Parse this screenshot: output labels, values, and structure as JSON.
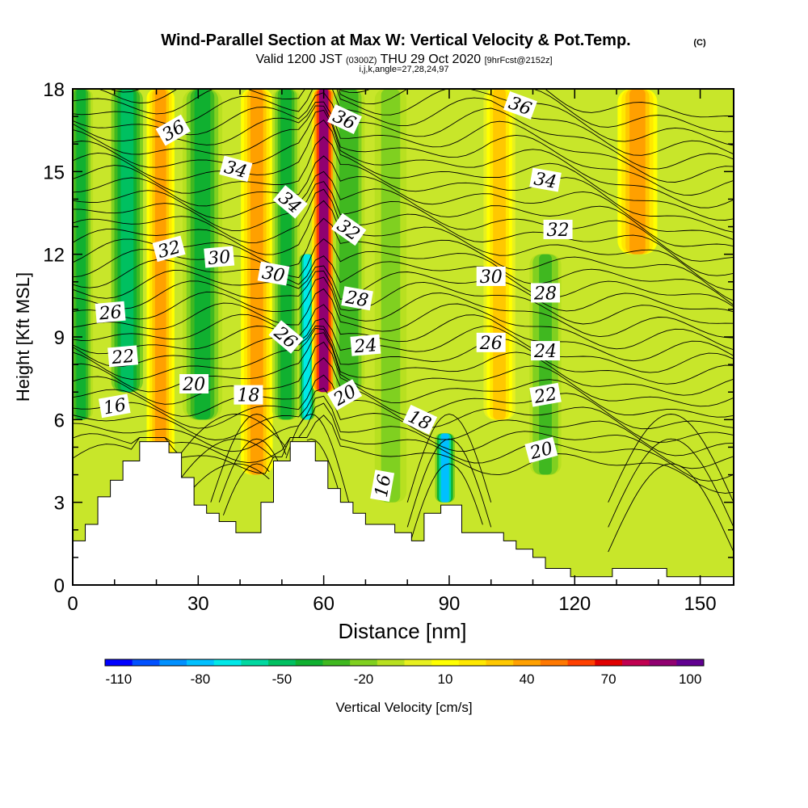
{
  "title": {
    "main": "Wind-Parallel Section at Max W: Vertical Velocity & Pot.Temp.",
    "copyright": "(C)",
    "valid_prefix": "Valid 1200 JST",
    "valid_utc": "(0300Z)",
    "valid_date": "THU 29 Oct 2020",
    "forecast": "[9hrFcst@2152z]",
    "indices": "i,j,k,angle=27,28,24,97"
  },
  "chart_data": {
    "type": "heatmap",
    "xlabel": "Distance [nm]",
    "ylabel": "Height [Kft MSL]",
    "xlim": [
      0,
      158
    ],
    "ylim": [
      0,
      18
    ],
    "x_ticks": [
      0,
      30,
      60,
      90,
      120,
      150
    ],
    "y_ticks": [
      0,
      3,
      6,
      9,
      12,
      15,
      18
    ],
    "terrain": [
      [
        0,
        1.6
      ],
      [
        3,
        1.6
      ],
      [
        3,
        2.2
      ],
      [
        6,
        2.2
      ],
      [
        6,
        3.2
      ],
      [
        9,
        3.2
      ],
      [
        9,
        3.8
      ],
      [
        12,
        3.8
      ],
      [
        12,
        4.5
      ],
      [
        16,
        4.5
      ],
      [
        16,
        5.2
      ],
      [
        23,
        5.2
      ],
      [
        23,
        4.8
      ],
      [
        26,
        4.8
      ],
      [
        26,
        3.9
      ],
      [
        29,
        3.9
      ],
      [
        29,
        2.9
      ],
      [
        32,
        2.9
      ],
      [
        32,
        2.6
      ],
      [
        35,
        2.6
      ],
      [
        35,
        2.3
      ],
      [
        39,
        2.3
      ],
      [
        39,
        1.9
      ],
      [
        45,
        1.9
      ],
      [
        45,
        3.0
      ],
      [
        48,
        3.0
      ],
      [
        48,
        4.5
      ],
      [
        52,
        4.5
      ],
      [
        52,
        5.2
      ],
      [
        58,
        5.2
      ],
      [
        58,
        4.5
      ],
      [
        61,
        4.5
      ],
      [
        61,
        3.5
      ],
      [
        64,
        3.5
      ],
      [
        64,
        3.0
      ],
      [
        67,
        3.0
      ],
      [
        67,
        2.6
      ],
      [
        70,
        2.6
      ],
      [
        70,
        2.2
      ],
      [
        77,
        2.2
      ],
      [
        77,
        1.9
      ],
      [
        81,
        1.9
      ],
      [
        81,
        1.6
      ],
      [
        84,
        1.6
      ],
      [
        84,
        2.6
      ],
      [
        88,
        2.6
      ],
      [
        88,
        2.9
      ],
      [
        93,
        2.9
      ],
      [
        93,
        1.9
      ],
      [
        103,
        1.9
      ],
      [
        103,
        1.6
      ],
      [
        106,
        1.6
      ],
      [
        106,
        1.3
      ],
      [
        110,
        1.3
      ],
      [
        110,
        1.0
      ],
      [
        113,
        1.0
      ],
      [
        113,
        0.6
      ],
      [
        119,
        0.6
      ],
      [
        119,
        0.3
      ],
      [
        129,
        0.3
      ],
      [
        129,
        0.6
      ],
      [
        142,
        0.6
      ],
      [
        142,
        0.3
      ],
      [
        158,
        0.3
      ]
    ],
    "vv_columns": [
      {
        "x": 2,
        "w": 3,
        "z0": 6,
        "z1": 18,
        "value": -40
      },
      {
        "x": 13,
        "w": 4,
        "z0": 7,
        "z1": 18,
        "value": -45
      },
      {
        "x": 21,
        "w": 3.5,
        "z0": 4.5,
        "z1": 18,
        "value": 45
      },
      {
        "x": 31,
        "w": 5,
        "z0": 6,
        "z1": 18,
        "value": -40
      },
      {
        "x": 44,
        "w": 4,
        "z0": 4,
        "z1": 18,
        "value": 40
      },
      {
        "x": 51,
        "w": 3.5,
        "z0": 6,
        "z1": 18,
        "value": -40
      },
      {
        "x": 56,
        "w": 2,
        "z0": 6,
        "z1": 12,
        "value": -70
      },
      {
        "x": 60,
        "w": 3,
        "z0": 7,
        "z1": 18,
        "value": 90
      },
      {
        "x": 66,
        "w": 4,
        "z0": 7,
        "z1": 18,
        "value": -30
      },
      {
        "x": 76,
        "w": 4,
        "z0": 3,
        "z1": 18,
        "value": -20
      },
      {
        "x": 89,
        "w": 2.5,
        "z0": 3,
        "z1": 5.5,
        "value": -80
      },
      {
        "x": 102,
        "w": 4,
        "z0": 6,
        "z1": 18,
        "value": 30
      },
      {
        "x": 113,
        "w": 4,
        "z0": 4,
        "z1": 12,
        "value": -25
      },
      {
        "x": 135,
        "w": 5,
        "z0": 12,
        "z1": 18,
        "value": 40
      }
    ],
    "theta_labels": [
      {
        "text": "36",
        "x": 24,
        "z": 16.5,
        "angle": -30
      },
      {
        "text": "36",
        "x": 65,
        "z": 16.9,
        "angle": 25
      },
      {
        "text": "36",
        "x": 107,
        "z": 17.4,
        "angle": 20
      },
      {
        "text": "34",
        "x": 39,
        "z": 15.1,
        "angle": 15
      },
      {
        "text": "34",
        "x": 52,
        "z": 13.9,
        "angle": 40
      },
      {
        "text": "34",
        "x": 113,
        "z": 14.7,
        "angle": 10
      },
      {
        "text": "32",
        "x": 23,
        "z": 12.2,
        "angle": -15
      },
      {
        "text": "32",
        "x": 66,
        "z": 12.9,
        "angle": 35
      },
      {
        "text": "32",
        "x": 116,
        "z": 12.9,
        "angle": 0
      },
      {
        "text": "30",
        "x": 35,
        "z": 11.9,
        "angle": -5
      },
      {
        "text": "30",
        "x": 48,
        "z": 11.3,
        "angle": 10
      },
      {
        "text": "30",
        "x": 100,
        "z": 11.2,
        "angle": 0
      },
      {
        "text": "28",
        "x": 68,
        "z": 10.4,
        "angle": 10
      },
      {
        "text": "28",
        "x": 113,
        "z": 10.6,
        "angle": 0
      },
      {
        "text": "26",
        "x": 9,
        "z": 9.9,
        "angle": -5
      },
      {
        "text": "26",
        "x": 51,
        "z": 9.0,
        "angle": 40
      },
      {
        "text": "26",
        "x": 100,
        "z": 8.8,
        "angle": 0
      },
      {
        "text": "24",
        "x": 70,
        "z": 8.7,
        "angle": -5
      },
      {
        "text": "24",
        "x": 113,
        "z": 8.5,
        "angle": 0
      },
      {
        "text": "22",
        "x": 12,
        "z": 8.3,
        "angle": -5
      },
      {
        "text": "22",
        "x": 113,
        "z": 6.9,
        "angle": -10
      },
      {
        "text": "20",
        "x": 29,
        "z": 7.3,
        "angle": 0
      },
      {
        "text": "20",
        "x": 65,
        "z": 6.9,
        "angle": -30
      },
      {
        "text": "20",
        "x": 112,
        "z": 4.9,
        "angle": -15
      },
      {
        "text": "18",
        "x": 42,
        "z": 6.9,
        "angle": 0
      },
      {
        "text": "18",
        "x": 83,
        "z": 6.0,
        "angle": 25
      },
      {
        "text": "16",
        "x": 10,
        "z": 6.5,
        "angle": -10
      },
      {
        "text": "16",
        "x": 74,
        "z": 3.6,
        "angle": -80
      }
    ],
    "colorbar": {
      "label": "Vertical Velocity [cm/s]",
      "tick_labels": [
        "-110",
        "-80",
        "-50",
        "-20",
        "10",
        "40",
        "70",
        "100"
      ],
      "levels": [
        -110,
        -100,
        -90,
        -80,
        -70,
        -60,
        -50,
        -40,
        -30,
        -20,
        -10,
        0,
        10,
        20,
        30,
        40,
        50,
        60,
        70,
        80,
        90,
        100,
        110
      ],
      "colors": [
        "#0000ff",
        "#0050ff",
        "#0090ff",
        "#00c0ff",
        "#00e8e8",
        "#00d8a0",
        "#00c060",
        "#10b030",
        "#40b820",
        "#80d020",
        "#b8e020",
        "#e8f020",
        "#ffff00",
        "#ffe800",
        "#ffc800",
        "#ffa000",
        "#ff7800",
        "#ff4000",
        "#e00000",
        "#c00050",
        "#900070",
        "#600090"
      ]
    }
  }
}
